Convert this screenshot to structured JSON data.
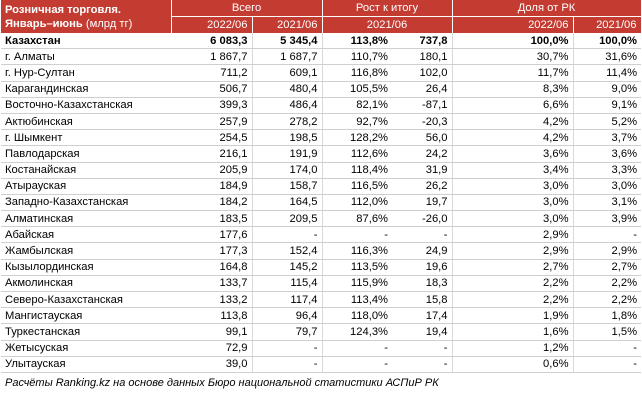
{
  "title": "Розничная торговля. Январь–июнь",
  "unit": "(млрд тг)",
  "groups": {
    "total": "Всего",
    "growth": "Рост к итогу",
    "share": "Доля от РК"
  },
  "periods": {
    "p2022": "2022/06",
    "p2021": "2021/06",
    "growth_period": "2021/06",
    "share2022": "2022/06",
    "share2021": "2021/06"
  },
  "rows": [
    {
      "name": "Казахстан",
      "v2022": "6 083,3",
      "v2021": "5 345,4",
      "growth_pct": "113,8%",
      "growth_abs": "737,8",
      "share2022": "100,0%",
      "share2021": "100,0%"
    },
    {
      "name": "г. Алматы",
      "v2022": "1 867,7",
      "v2021": "1 687,7",
      "growth_pct": "110,7%",
      "growth_abs": "180,1",
      "share2022": "30,7%",
      "share2021": "31,6%"
    },
    {
      "name": "г. Нур-Султан",
      "v2022": "711,2",
      "v2021": "609,1",
      "growth_pct": "116,8%",
      "growth_abs": "102,0",
      "share2022": "11,7%",
      "share2021": "11,4%"
    },
    {
      "name": "Карагандинская",
      "v2022": "506,7",
      "v2021": "480,4",
      "growth_pct": "105,5%",
      "growth_abs": "26,4",
      "share2022": "8,3%",
      "share2021": "9,0%"
    },
    {
      "name": "Восточно-Казахстанская",
      "v2022": "399,3",
      "v2021": "486,4",
      "growth_pct": "82,1%",
      "growth_abs": "-87,1",
      "share2022": "6,6%",
      "share2021": "9,1%"
    },
    {
      "name": "Актюбинская",
      "v2022": "257,9",
      "v2021": "278,2",
      "growth_pct": "92,7%",
      "growth_abs": "-20,3",
      "share2022": "4,2%",
      "share2021": "5,2%"
    },
    {
      "name": "г. Шымкент",
      "v2022": "254,5",
      "v2021": "198,5",
      "growth_pct": "128,2%",
      "growth_abs": "56,0",
      "share2022": "4,2%",
      "share2021": "3,7%"
    },
    {
      "name": "Павлодарская",
      "v2022": "216,1",
      "v2021": "191,9",
      "growth_pct": "112,6%",
      "growth_abs": "24,2",
      "share2022": "3,6%",
      "share2021": "3,6%"
    },
    {
      "name": "Костанайская",
      "v2022": "205,9",
      "v2021": "174,0",
      "growth_pct": "118,4%",
      "growth_abs": "31,9",
      "share2022": "3,4%",
      "share2021": "3,3%"
    },
    {
      "name": "Атырауская",
      "v2022": "184,9",
      "v2021": "158,7",
      "growth_pct": "116,5%",
      "growth_abs": "26,2",
      "share2022": "3,0%",
      "share2021": "3,0%"
    },
    {
      "name": "Западно-Казахстанская",
      "v2022": "184,2",
      "v2021": "164,5",
      "growth_pct": "112,0%",
      "growth_abs": "19,7",
      "share2022": "3,0%",
      "share2021": "3,1%"
    },
    {
      "name": "Алматинская",
      "v2022": "183,5",
      "v2021": "209,5",
      "growth_pct": "87,6%",
      "growth_abs": "-26,0",
      "share2022": "3,0%",
      "share2021": "3,9%"
    },
    {
      "name": "Абайская",
      "v2022": "177,6",
      "v2021": "-",
      "growth_pct": "-",
      "growth_abs": "-",
      "share2022": "2,9%",
      "share2021": "-"
    },
    {
      "name": "Жамбылская",
      "v2022": "177,3",
      "v2021": "152,4",
      "growth_pct": "116,3%",
      "growth_abs": "24,9",
      "share2022": "2,9%",
      "share2021": "2,9%"
    },
    {
      "name": "Кызылординская",
      "v2022": "164,8",
      "v2021": "145,2",
      "growth_pct": "113,5%",
      "growth_abs": "19,6",
      "share2022": "2,7%",
      "share2021": "2,7%"
    },
    {
      "name": "Акмолинская",
      "v2022": "133,7",
      "v2021": "115,4",
      "growth_pct": "115,9%",
      "growth_abs": "18,3",
      "share2022": "2,2%",
      "share2021": "2,2%"
    },
    {
      "name": "Северо-Казахстанская",
      "v2022": "133,2",
      "v2021": "117,4",
      "growth_pct": "113,4%",
      "growth_abs": "15,8",
      "share2022": "2,2%",
      "share2021": "2,2%"
    },
    {
      "name": "Мангистауская",
      "v2022": "113,8",
      "v2021": "96,4",
      "growth_pct": "118,0%",
      "growth_abs": "17,4",
      "share2022": "1,9%",
      "share2021": "1,8%"
    },
    {
      "name": "Туркестанская",
      "v2022": "99,1",
      "v2021": "79,7",
      "growth_pct": "124,3%",
      "growth_abs": "19,4",
      "share2022": "1,6%",
      "share2021": "1,5%"
    },
    {
      "name": "Жетысуская",
      "v2022": "72,9",
      "v2021": "-",
      "growth_pct": "-",
      "growth_abs": "-",
      "share2022": "1,2%",
      "share2021": "-"
    },
    {
      "name": "Улытауская",
      "v2022": "39,0",
      "v2021": "-",
      "growth_pct": "-",
      "growth_abs": "-",
      "share2022": "0,6%",
      "share2021": "-"
    }
  ],
  "footer": "Расчёты Ranking.kz на основе данных Бюро национальной статистики АСПиР РК"
}
